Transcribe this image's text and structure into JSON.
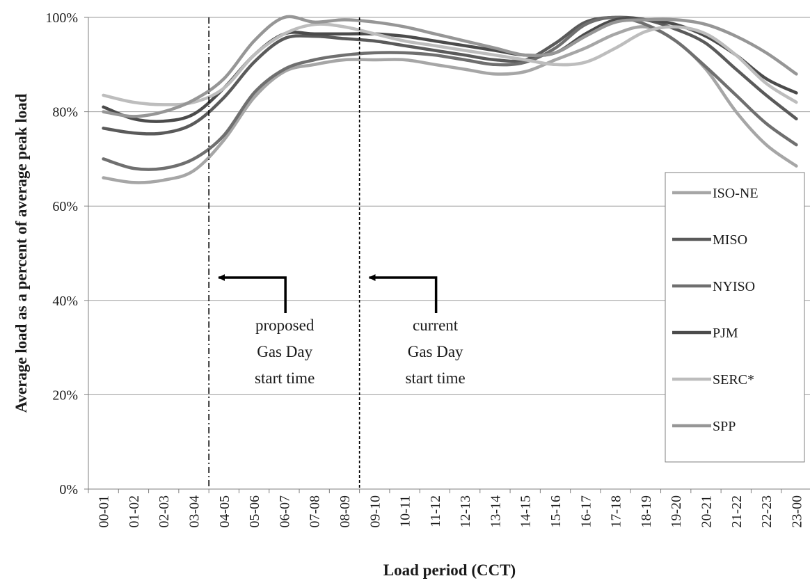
{
  "chart_data": {
    "type": "line",
    "ylabel": "Average load as a percent of average peak load",
    "xlabel": "Load period (CCT)",
    "ylim": [
      0,
      100
    ],
    "yticks": [
      0,
      20,
      40,
      60,
      80,
      100
    ],
    "ytick_labels": [
      "0%",
      "20%",
      "40%",
      "60%",
      "80%",
      "100%"
    ],
    "grid": "horizontal",
    "legend_position": "right",
    "categories": [
      "00-01",
      "01-02",
      "02-03",
      "03-04",
      "04-05",
      "05-06",
      "06-07",
      "07-08",
      "08-09",
      "09-10",
      "10-11",
      "11-12",
      "12-13",
      "13-14",
      "14-15",
      "15-16",
      "16-17",
      "17-18",
      "18-19",
      "19-20",
      "20-21",
      "21-22",
      "22-23",
      "23-00"
    ],
    "series": [
      {
        "name": "ISO-NE",
        "color": "#a6a6a6",
        "values": [
          66,
          65,
          65.5,
          67.5,
          74,
          83,
          88.5,
          90,
          91,
          91,
          91,
          90,
          89,
          88,
          88.5,
          91,
          93.5,
          96.5,
          98,
          95,
          89,
          80,
          73,
          68.5
        ]
      },
      {
        "name": "MISO",
        "color": "#5a5a5a",
        "values": [
          76.5,
          75.5,
          75.5,
          77.5,
          83,
          90.5,
          95.5,
          96,
          95.5,
          95,
          94,
          93,
          92,
          91,
          91,
          94.5,
          99,
          100,
          99.5,
          97.5,
          94.5,
          89,
          83.5,
          78.5
        ]
      },
      {
        "name": "NYISO",
        "color": "#6f6f6f",
        "values": [
          70,
          68,
          68,
          70,
          75,
          84,
          89,
          91,
          92,
          92.5,
          92.5,
          92,
          91,
          90,
          90.5,
          93.5,
          98.5,
          100,
          98.5,
          95,
          89.5,
          83.5,
          77.5,
          73
        ]
      },
      {
        "name": "PJM",
        "color": "#4b4b4b",
        "values": [
          81,
          78.5,
          78,
          79.5,
          85,
          92,
          96.5,
          96.5,
          96.5,
          96.5,
          96,
          95,
          94,
          93,
          92,
          92.5,
          96.5,
          99.5,
          99.5,
          98.5,
          96,
          92,
          87,
          84
        ]
      },
      {
        "name": "SERC*",
        "color": "#bdbdbd",
        "values": [
          83.5,
          82,
          81.5,
          82,
          85,
          92,
          96.5,
          98.5,
          98,
          96.5,
          95,
          94,
          93,
          92,
          91,
          90,
          90.5,
          93.5,
          97,
          98,
          96.5,
          92,
          86,
          82
        ]
      },
      {
        "name": "SPP",
        "color": "#969696",
        "values": [
          80,
          79,
          80,
          82.5,
          87,
          95,
          100,
          99,
          99.5,
          99,
          98,
          96.5,
          95,
          93.5,
          92,
          92.5,
          96,
          99,
          99.5,
          99.5,
          98.5,
          96,
          92.5,
          88
        ]
      }
    ],
    "annotations": [
      {
        "label_lines": [
          "proposed",
          "Gas Day",
          "start time"
        ],
        "boundary_between": [
          "03-04",
          "04-05"
        ],
        "line_style": "dash-dot"
      },
      {
        "label_lines": [
          "current",
          "Gas Day",
          "start time"
        ],
        "boundary_between": [
          "08-09",
          "09-10"
        ],
        "line_style": "dashed"
      }
    ]
  }
}
